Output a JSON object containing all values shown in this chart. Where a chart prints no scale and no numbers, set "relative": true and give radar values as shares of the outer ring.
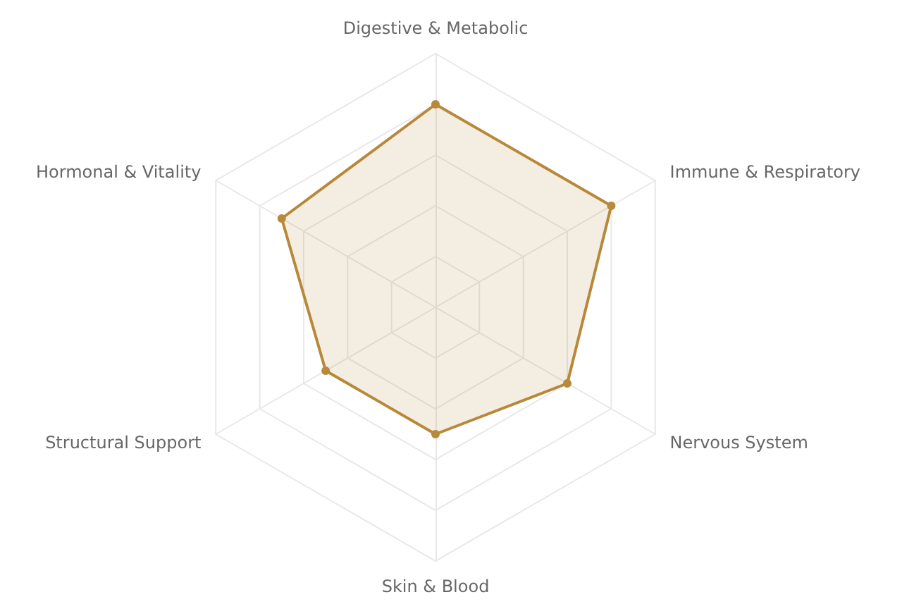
{
  "chart_data": {
    "type": "radar",
    "relative": true,
    "categories": [
      "Digestive & Metabolic",
      "Immune & Respiratory",
      "Nervous System",
      "Skin & Blood",
      "Structural Support",
      "Hormonal & Vitality"
    ],
    "series": [
      {
        "color": "#b8893a",
        "values": [
          0.8,
          0.8,
          0.6,
          0.5,
          0.5,
          0.7
        ]
      }
    ],
    "marker": "circle",
    "line_style": "solid",
    "grid": true
  }
}
